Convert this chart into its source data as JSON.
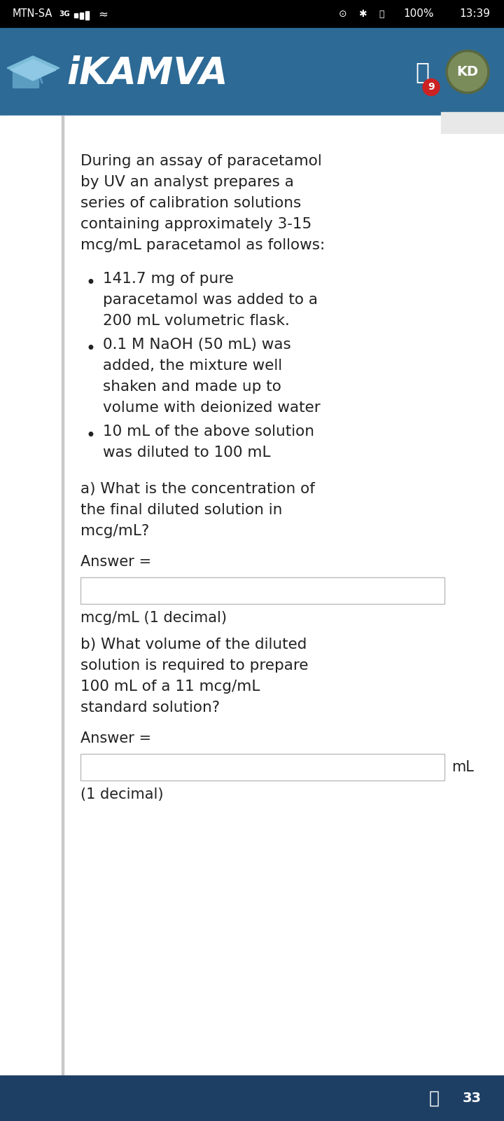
{
  "status_bar_bg": "#000000",
  "status_bar_left": "MTN-SA 3G",
  "status_bar_right": "13:39",
  "header_bg": "#2d6a96",
  "app_name": "iKAMVA",
  "user_avatar": "KD",
  "avatar_bg": "#7a8c5a",
  "badge_color": "#cc2222",
  "badge_num": "9",
  "bg_color": "#f5f5f5",
  "content_bg": "#ffffff",
  "left_border_color": "#c8c8c8",
  "body_text_color": "#222222",
  "input_border_color": "#bbbbbb",
  "input_bg": "#ffffff",
  "footer_bg": "#1e3f64",
  "footer_text_color": "#ffffff",
  "intro_lines": [
    "During an assay of paracetamol",
    "by UV an analyst prepares a",
    "series of calibration solutions",
    "containing approximately 3-15",
    "mcg/mL paracetamol as follows:"
  ],
  "bullet1": [
    "141.7 mg of pure",
    "paracetamol was added to a",
    "200 mL volumetric flask."
  ],
  "bullet2": [
    "0.1 M NaOH (50 mL) was",
    "added, the mixture well",
    "shaken and made up to",
    "volume with deionized water"
  ],
  "bullet3": [
    "10 mL of the above solution",
    "was diluted to 100 mL"
  ],
  "qa_lines": [
    "a) What is the concentration of",
    "the final diluted solution in",
    "mcg/mL?"
  ],
  "answer_a_label": "Answer =",
  "answer_a_unit": "mcg/mL (1 decimal)",
  "qb_lines": [
    "b) What volume of the diluted",
    "solution is required to prepare",
    "100 mL of a 11 mcg/mL",
    "standard solution?"
  ],
  "answer_b_label": "Answer =",
  "answer_b_unit": "mL",
  "answer_b_note": "(1 decimal)",
  "footer_num": "33"
}
